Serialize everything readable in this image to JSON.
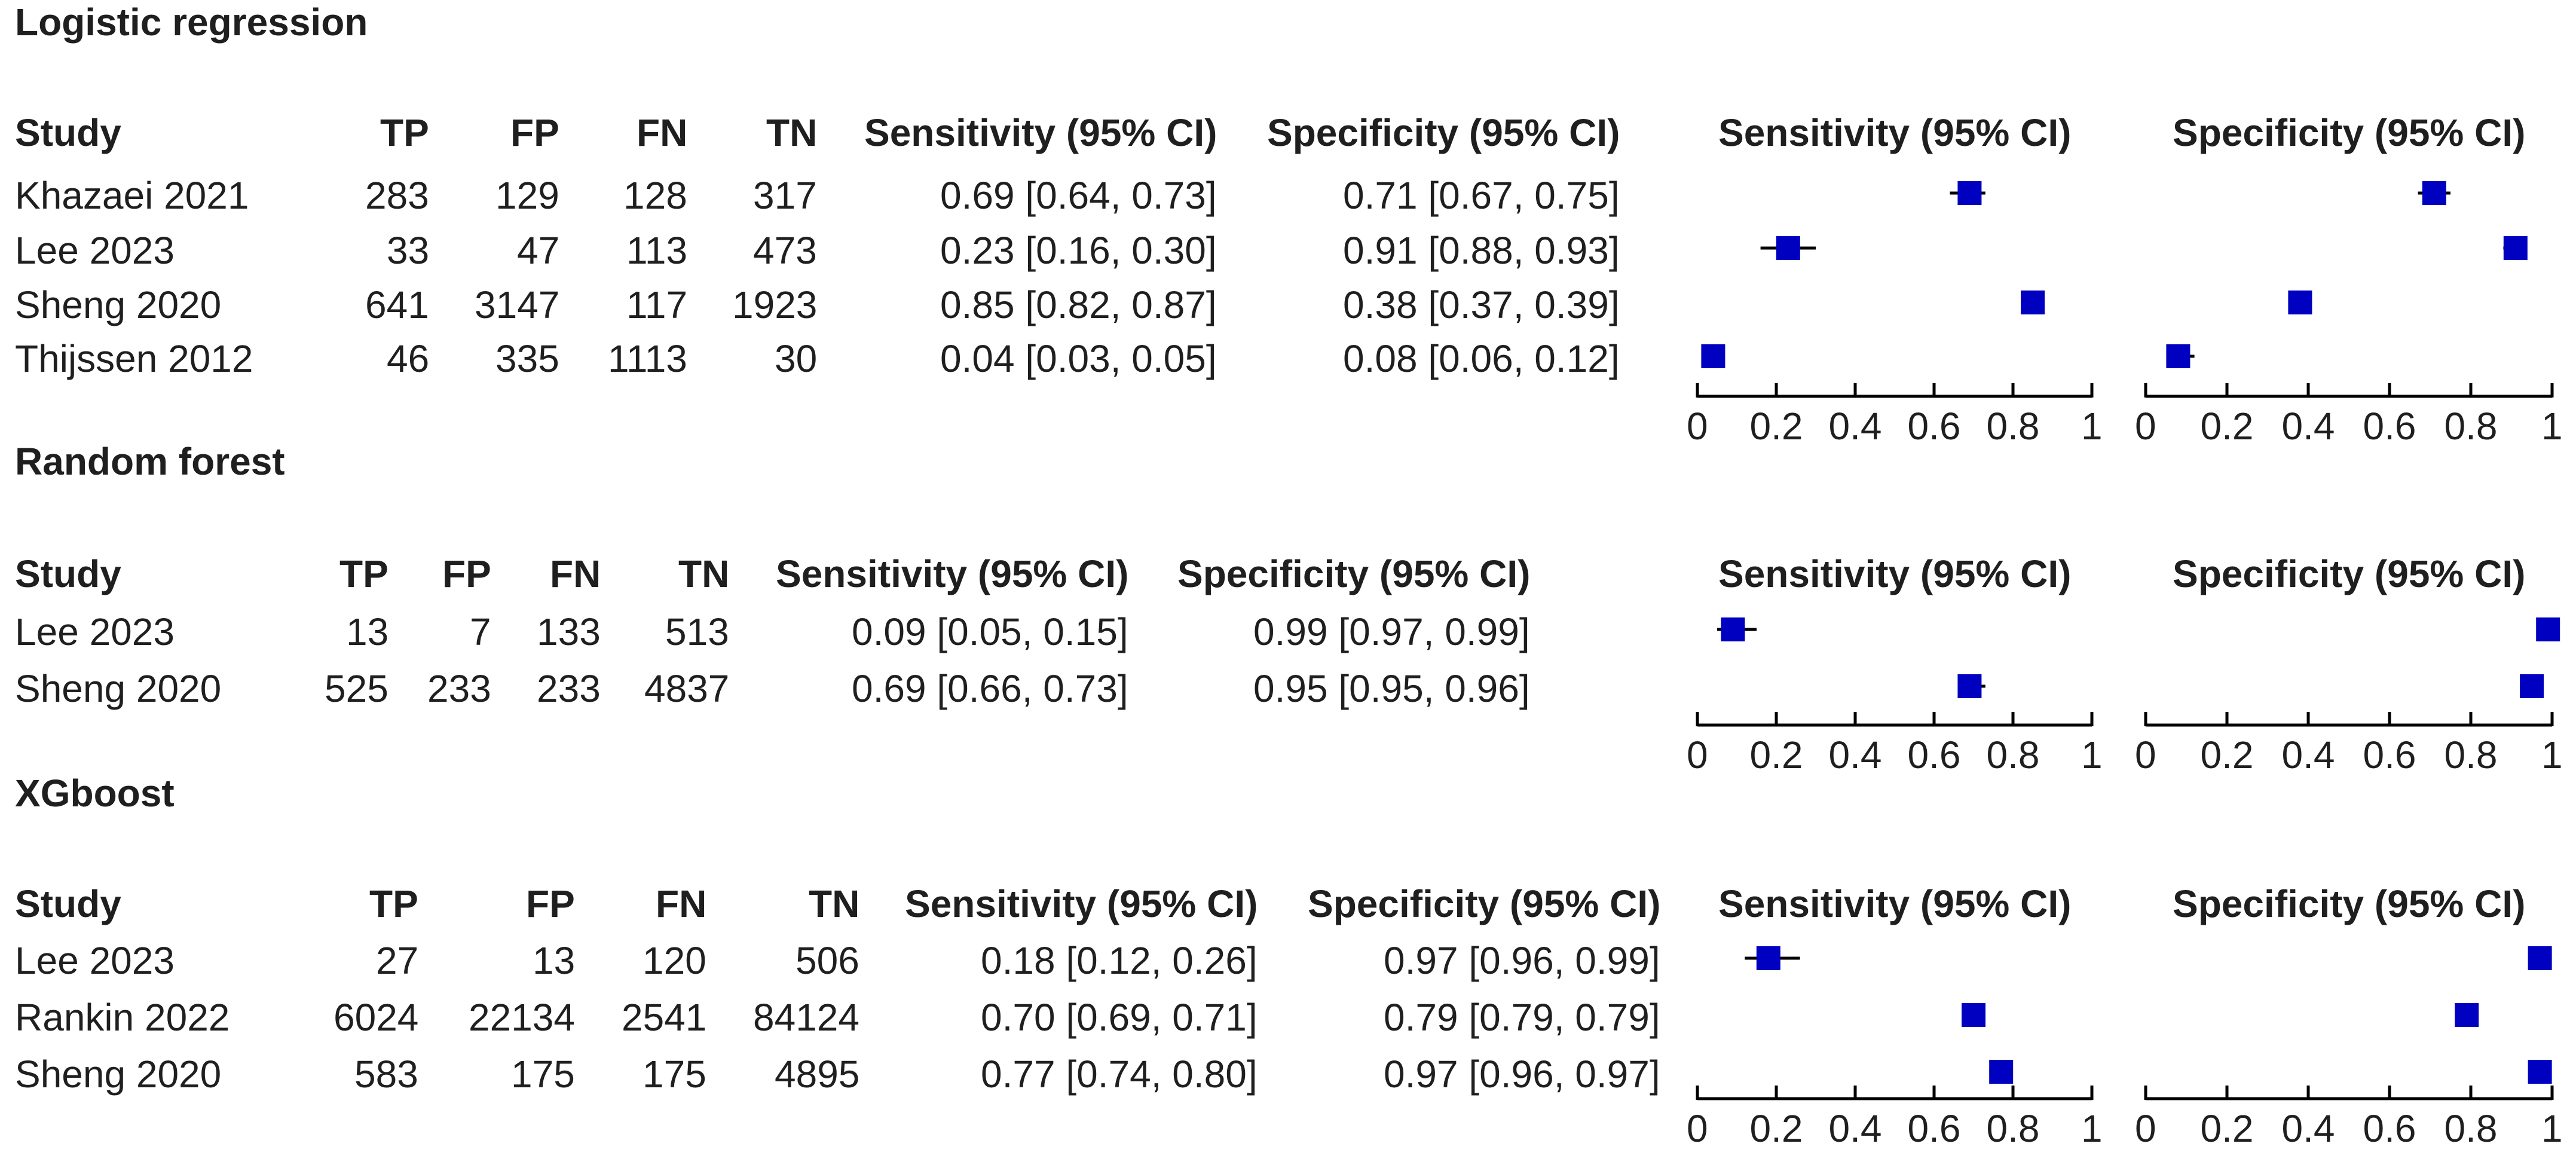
{
  "columns": {
    "study": "Study",
    "tp": "TP",
    "fp": "FP",
    "fn": "FN",
    "tn": "TN",
    "sens": "Sensitivity (95% CI)",
    "spec": "Specificity (95% CI)"
  },
  "plot_headers": {
    "sens": "Sensitivity (95% CI)",
    "spec": "Specificity (95% CI)"
  },
  "chart_data": {
    "type": "forest",
    "axis": {
      "range": [
        0,
        1
      ],
      "ticks": [
        "0",
        "0.2",
        "0.4",
        "0.6",
        "0.8",
        "1"
      ]
    },
    "marker_color": "#0000c0",
    "groups": [
      {
        "title": "Logistic regression",
        "rows": [
          {
            "study": "Khazaei 2021",
            "tp": "283",
            "fp": "129",
            "fn": "128",
            "tn": "317",
            "sens_text": "0.69 [0.64, 0.73]",
            "spec_text": "0.71 [0.67, 0.75]",
            "sens": 0.69,
            "sens_lo": 0.64,
            "sens_hi": 0.73,
            "spec": 0.71,
            "spec_lo": 0.67,
            "spec_hi": 0.75
          },
          {
            "study": "Lee 2023",
            "tp": "33",
            "fp": "47",
            "fn": "113",
            "tn": "473",
            "sens_text": "0.23 [0.16, 0.30]",
            "spec_text": "0.91 [0.88, 0.93]",
            "sens": 0.23,
            "sens_lo": 0.16,
            "sens_hi": 0.3,
            "spec": 0.91,
            "spec_lo": 0.88,
            "spec_hi": 0.93
          },
          {
            "study": "Sheng 2020",
            "tp": "641",
            "fp": "3147",
            "fn": "117",
            "tn": "1923",
            "sens_text": "0.85 [0.82, 0.87]",
            "spec_text": "0.38 [0.37, 0.39]",
            "sens": 0.85,
            "sens_lo": 0.82,
            "sens_hi": 0.87,
            "spec": 0.38,
            "spec_lo": 0.37,
            "spec_hi": 0.39
          },
          {
            "study": "Thijssen 2012",
            "tp": "46",
            "fp": "335",
            "fn": "1113",
            "tn": "30",
            "sens_text": "0.04 [0.03, 0.05]",
            "spec_text": "0.08 [0.06, 0.12]",
            "sens": 0.04,
            "sens_lo": 0.03,
            "sens_hi": 0.05,
            "spec": 0.08,
            "spec_lo": 0.06,
            "spec_hi": 0.12
          }
        ]
      },
      {
        "title": "Random forest",
        "rows": [
          {
            "study": "Lee 2023",
            "tp": "13",
            "fp": "7",
            "fn": "133",
            "tn": "513",
            "sens_text": "0.09 [0.05, 0.15]",
            "spec_text": "0.99 [0.97, 0.99]",
            "sens": 0.09,
            "sens_lo": 0.05,
            "sens_hi": 0.15,
            "spec": 0.99,
            "spec_lo": 0.97,
            "spec_hi": 0.99
          },
          {
            "study": "Sheng 2020",
            "tp": "525",
            "fp": "233",
            "fn": "233",
            "tn": "4837",
            "sens_text": "0.69 [0.66, 0.73]",
            "spec_text": "0.95 [0.95, 0.96]",
            "sens": 0.69,
            "sens_lo": 0.66,
            "sens_hi": 0.73,
            "spec": 0.95,
            "spec_lo": 0.95,
            "spec_hi": 0.96
          }
        ]
      },
      {
        "title": "XGboost",
        "rows": [
          {
            "study": "Lee 2023",
            "tp": "27",
            "fp": "13",
            "fn": "120",
            "tn": "506",
            "sens_text": "0.18 [0.12, 0.26]",
            "spec_text": "0.97 [0.96, 0.99]",
            "sens": 0.18,
            "sens_lo": 0.12,
            "sens_hi": 0.26,
            "spec": 0.97,
            "spec_lo": 0.96,
            "spec_hi": 0.99
          },
          {
            "study": "Rankin 2022",
            "tp": "6024",
            "fp": "22134",
            "fn": "2541",
            "tn": "84124",
            "sens_text": "0.70 [0.69, 0.71]",
            "spec_text": "0.79 [0.79, 0.79]",
            "sens": 0.7,
            "sens_lo": 0.69,
            "sens_hi": 0.71,
            "spec": 0.79,
            "spec_lo": 0.79,
            "spec_hi": 0.79
          },
          {
            "study": "Sheng 2020",
            "tp": "583",
            "fp": "175",
            "fn": "175",
            "tn": "4895",
            "sens_text": "0.77 [0.74, 0.80]",
            "spec_text": "0.97 [0.96, 0.97]",
            "sens": 0.77,
            "sens_lo": 0.74,
            "sens_hi": 0.8,
            "spec": 0.97,
            "spec_lo": 0.96,
            "spec_hi": 0.97
          }
        ]
      }
    ]
  }
}
